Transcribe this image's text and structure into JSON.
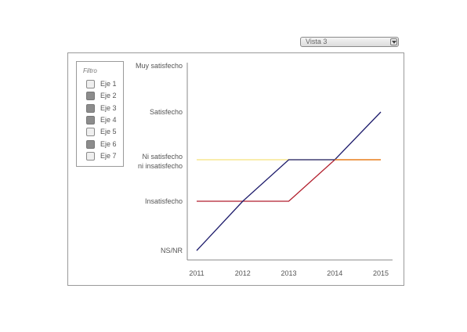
{
  "view_select": {
    "value": "Vista 3"
  },
  "filter": {
    "title": "Filtro",
    "items": [
      {
        "label": "Eje 1",
        "checked": false
      },
      {
        "label": "Eje 2",
        "checked": true
      },
      {
        "label": "Eje 3",
        "checked": true
      },
      {
        "label": "Eje 4",
        "checked": true
      },
      {
        "label": "Eje 5",
        "checked": false
      },
      {
        "label": "Eje 6",
        "checked": true
      },
      {
        "label": "Eje 7",
        "checked": false
      }
    ]
  },
  "chart_data": {
    "type": "line",
    "x": [
      2011,
      2012,
      2013,
      2014,
      2015
    ],
    "y_categories": [
      "NS/NR",
      "Insatisfecho",
      "Ni satisfecho ni insatisfecho",
      "Satisfecho",
      "Muy satisfecho"
    ],
    "y_tick_labels": [
      [
        "NS/NR"
      ],
      [
        "Insatisfecho"
      ],
      [
        "Ni satisfecho",
        "ni insatisfecho"
      ],
      [
        "Satisfecho"
      ],
      [
        "Muy satisfecho"
      ]
    ],
    "series": [
      {
        "color": "#f5e27a",
        "values": [
          2,
          2,
          2,
          2,
          2
        ]
      },
      {
        "color": "#b21f2d",
        "values": [
          1,
          1,
          1,
          2,
          2
        ]
      },
      {
        "color": "#1d1b6b",
        "values": [
          0,
          1,
          2,
          2,
          3
        ]
      },
      {
        "color": "#f08a1c",
        "x": [
          2014,
          2015
        ],
        "values": [
          2,
          2
        ]
      }
    ],
    "grid": false,
    "legend": "none"
  }
}
